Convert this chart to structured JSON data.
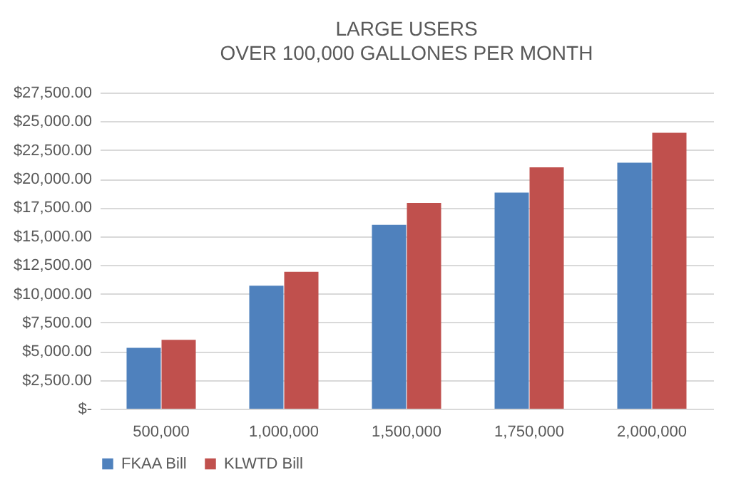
{
  "chart_data": {
    "type": "bar",
    "title": "LARGE USERS",
    "subtitle": "OVER 100,000  GALLONES PER MONTH",
    "categories": [
      "500,000",
      "1,000,000",
      "1,500,000",
      "1,750,000",
      "2,000,000"
    ],
    "series": [
      {
        "name": "FKAA Bill",
        "color": "#4f81bd",
        "values": [
          5300,
          10700,
          16000,
          18800,
          21400
        ]
      },
      {
        "name": "KLWTD Bill",
        "color": "#c0504d",
        "values": [
          6000,
          11900,
          17900,
          21000,
          24000
        ]
      }
    ],
    "ylim": [
      0,
      27500
    ],
    "yticks": [
      {
        "value": 0,
        "label": "$-"
      },
      {
        "value": 2500,
        "label": "$2,500.00"
      },
      {
        "value": 5000,
        "label": "$5,000.00"
      },
      {
        "value": 7500,
        "label": "$7,500.00"
      },
      {
        "value": 10000,
        "label": "$10,000.00"
      },
      {
        "value": 12500,
        "label": "$12,500.00"
      },
      {
        "value": 15000,
        "label": "$15,000.00"
      },
      {
        "value": 17500,
        "label": "$17,500.00"
      },
      {
        "value": 20000,
        "label": "$20,000.00"
      },
      {
        "value": 22500,
        "label": "$22,500.00"
      },
      {
        "value": 25000,
        "label": "$25,000.00"
      },
      {
        "value": 27500,
        "label": "$27,500.00"
      }
    ],
    "grid": "y",
    "legend": "bottom"
  }
}
